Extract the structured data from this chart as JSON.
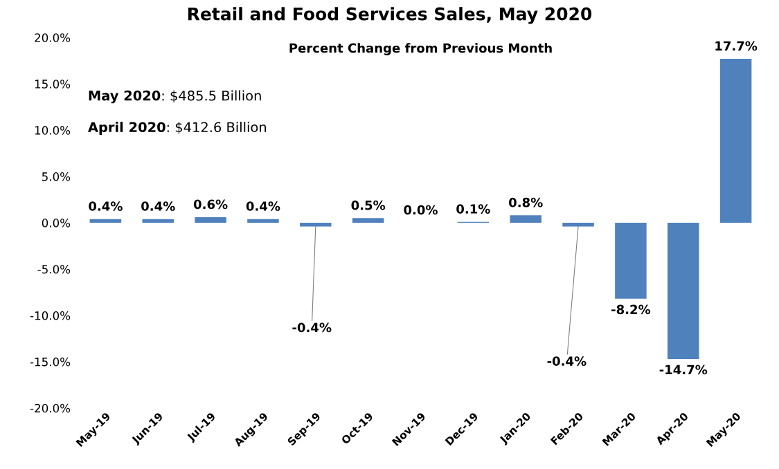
{
  "chart_data": {
    "type": "bar",
    "title": "Retail and Food Services Sales, May 2020",
    "subtitle": "Percent Change from Previous Month",
    "categories": [
      "May-19",
      "Jun-19",
      "Jul-19",
      "Aug-19",
      "Sep-19",
      "Oct-19",
      "Nov-19",
      "Dec-19",
      "Jan-20",
      "Feb-20",
      "Mar-20",
      "Apr-20",
      "May-20"
    ],
    "values": [
      0.4,
      0.4,
      0.6,
      0.4,
      -0.4,
      0.5,
      0.0,
      0.1,
      0.8,
      -0.4,
      -8.2,
      -14.7,
      17.7
    ],
    "value_labels": [
      "0.4%",
      "0.4%",
      "0.6%",
      "0.4%",
      "-0.4%",
      "0.5%",
      "0.0%",
      "0.1%",
      "0.8%",
      "-0.4%",
      "-8.2%",
      "-14.7%",
      "17.7%"
    ],
    "color": "#4f81bd",
    "ylim": [
      -20,
      20
    ],
    "yticks": [
      {
        "value": -20,
        "label": "-20.0%"
      },
      {
        "value": -15,
        "label": "-15.0%"
      },
      {
        "value": -10,
        "label": "-10.0%"
      },
      {
        "value": -5,
        "label": "-5.0%"
      },
      {
        "value": 0,
        "label": "0.0%"
      },
      {
        "value": 5,
        "label": "5.0%"
      },
      {
        "value": 10,
        "label": "10.0%"
      },
      {
        "value": 15,
        "label": "15.0%"
      },
      {
        "value": 20,
        "label": "20.0%"
      }
    ],
    "annotations": [
      "May 2020: $485.5 Billion",
      "April 2020: $412.6 Billion"
    ],
    "grid": false,
    "legend": false
  }
}
